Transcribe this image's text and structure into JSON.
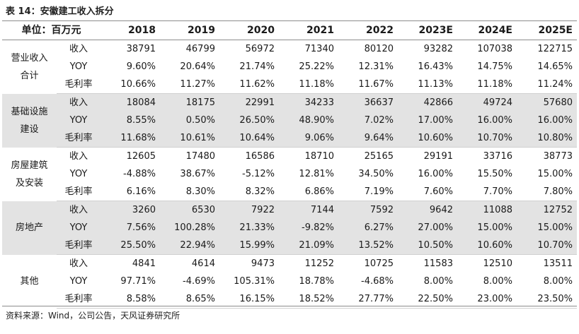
{
  "caption": "表 14：安徽建工收入拆分",
  "header": {
    "unit": "单位：百万元",
    "years": [
      "2018",
      "2019",
      "2020",
      "2021",
      "2022",
      "2023E",
      "2024E",
      "2025E"
    ]
  },
  "groups": [
    {
      "name_lines": [
        "营业收入",
        "合计"
      ],
      "shaded": false,
      "rows": [
        {
          "metric": "收入",
          "values": [
            "38791",
            "46799",
            "56972",
            "71340",
            "80120",
            "93282",
            "107038",
            "122715"
          ]
        },
        {
          "metric": "YOY",
          "values": [
            "9.60%",
            "20.64%",
            "21.74%",
            "25.22%",
            "12.31%",
            "16.43%",
            "14.75%",
            "14.65%"
          ]
        },
        {
          "metric": "毛利率",
          "values": [
            "10.66%",
            "11.27%",
            "11.62%",
            "11.18%",
            "11.67%",
            "11.13%",
            "11.18%",
            "11.24%"
          ]
        }
      ]
    },
    {
      "name_lines": [
        "基础设施",
        "建设"
      ],
      "shaded": true,
      "rows": [
        {
          "metric": "收入",
          "values": [
            "18084",
            "18175",
            "22991",
            "34233",
            "36637",
            "42866",
            "49724",
            "57680"
          ]
        },
        {
          "metric": "YOY",
          "values": [
            "8.55%",
            "0.50%",
            "26.50%",
            "48.90%",
            "7.02%",
            "17.00%",
            "16.00%",
            "16.00%"
          ]
        },
        {
          "metric": "毛利率",
          "values": [
            "11.68%",
            "10.61%",
            "10.64%",
            "9.06%",
            "9.64%",
            "10.60%",
            "10.70%",
            "10.80%"
          ]
        }
      ]
    },
    {
      "name_lines": [
        "房屋建筑",
        "及安装"
      ],
      "shaded": false,
      "rows": [
        {
          "metric": "收入",
          "values": [
            "12605",
            "17480",
            "16586",
            "18710",
            "25165",
            "29191",
            "33716",
            "38773"
          ]
        },
        {
          "metric": "YOY",
          "values": [
            "-4.88%",
            "38.67%",
            "-5.12%",
            "12.81%",
            "34.50%",
            "16.00%",
            "15.50%",
            "15.00%"
          ]
        },
        {
          "metric": "毛利率",
          "values": [
            "6.16%",
            "8.30%",
            "8.32%",
            "6.86%",
            "7.19%",
            "7.60%",
            "7.70%",
            "7.80%"
          ]
        }
      ]
    },
    {
      "name_lines": [
        "房地产"
      ],
      "shaded": true,
      "rows": [
        {
          "metric": "收入",
          "values": [
            "3260",
            "6530",
            "7922",
            "7144",
            "7592",
            "9642",
            "11088",
            "12752"
          ]
        },
        {
          "metric": "YOY",
          "values": [
            "7.56%",
            "100.28%",
            "21.33%",
            "-9.82%",
            "6.27%",
            "27.00%",
            "15.00%",
            "15.00%"
          ]
        },
        {
          "metric": "毛利率",
          "values": [
            "25.50%",
            "22.94%",
            "15.99%",
            "21.09%",
            "13.52%",
            "10.50%",
            "10.60%",
            "10.70%"
          ]
        }
      ]
    },
    {
      "name_lines": [
        "其他"
      ],
      "shaded": false,
      "rows": [
        {
          "metric": "收入",
          "values": [
            "4841",
            "4614",
            "9473",
            "11252",
            "10725",
            "11583",
            "12510",
            "13511"
          ]
        },
        {
          "metric": "YOY",
          "values": [
            "97.71%",
            "-4.69%",
            "105.31%",
            "18.78%",
            "-4.68%",
            "8.00%",
            "8.00%",
            "8.00%"
          ]
        },
        {
          "metric": "毛利率",
          "values": [
            "8.58%",
            "8.65%",
            "16.15%",
            "18.52%",
            "27.77%",
            "22.50%",
            "23.00%",
            "23.50%"
          ]
        }
      ]
    }
  ],
  "source": "资料来源：Wind，公司公告，天风证券研究所"
}
